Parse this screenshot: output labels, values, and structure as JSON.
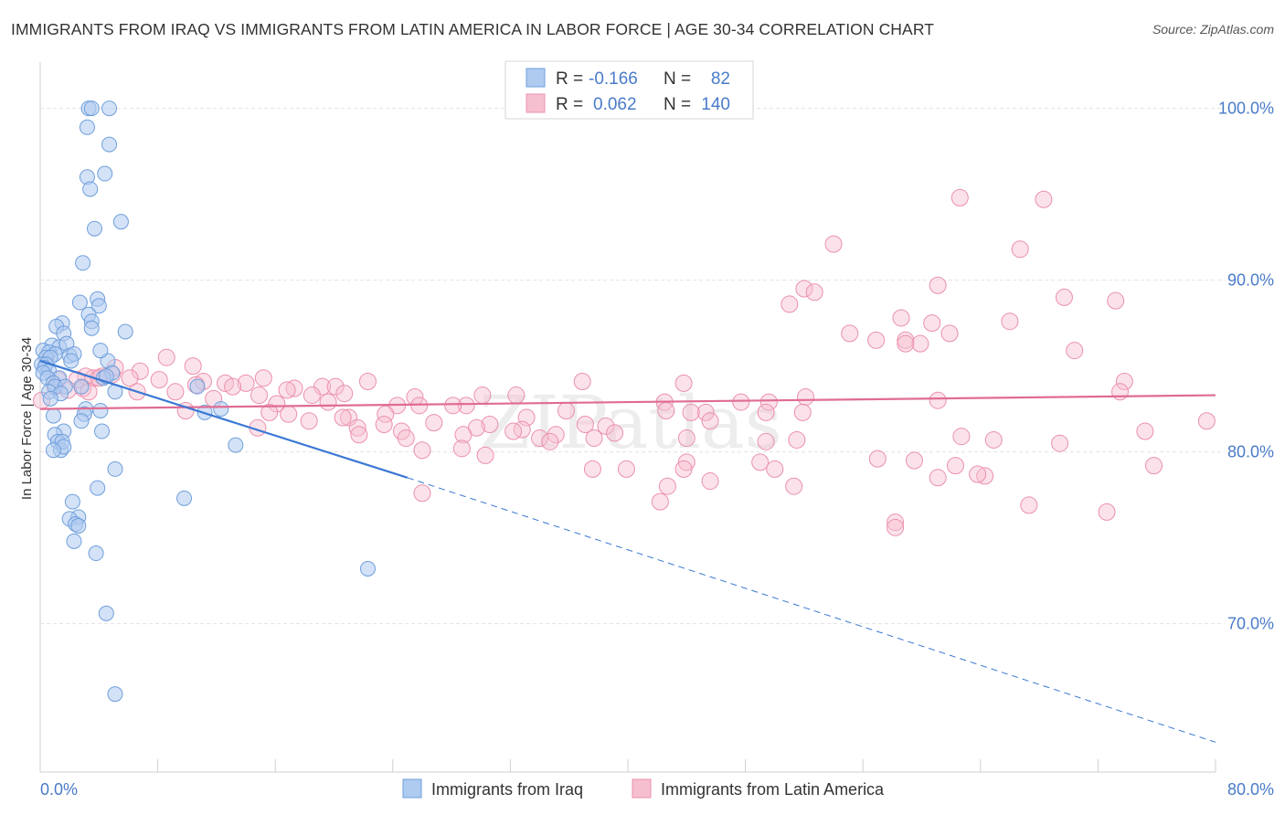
{
  "title": "IMMIGRANTS FROM IRAQ VS IMMIGRANTS FROM LATIN AMERICA IN LABOR FORCE | AGE 30-34 CORRELATION CHART",
  "source": "Source: ZipAtlas.com",
  "watermark": "ZIPatlas",
  "colors": {
    "iraq_fill": "#aecbf0",
    "iraq_stroke": "#6f9fdc",
    "iraq_line": "#3a78d4",
    "latam_fill": "#f6bfd0",
    "latam_stroke": "#eb90ac",
    "latam_line": "#e06c93",
    "grid": "#e3e3e3",
    "tick_label": "#4a7bc8"
  },
  "legend": {
    "iraq": {
      "r_label": "R =",
      "r_value": "-0.166",
      "n_label": "N =",
      "n_value": "82"
    },
    "latam": {
      "r_label": "R =",
      "r_value": "0.062",
      "n_label": "N =",
      "n_value": "140"
    }
  },
  "chart_data": {
    "type": "scatter",
    "title": "IMMIGRANTS FROM IRAQ VS IMMIGRANTS FROM LATIN AMERICA IN LABOR FORCE | AGE 30-34 CORRELATION CHART",
    "xlabel": "",
    "ylabel": "In Labor Force | Age 30-34",
    "xlim": [
      0,
      80
    ],
    "ylim": [
      62,
      102
    ],
    "x_tick_labels": [
      "0.0%",
      "80.0%"
    ],
    "y_ticks": [
      70,
      80,
      90,
      100
    ],
    "y_tick_labels": [
      "70.0%",
      "80.0%",
      "90.0%",
      "100.0%"
    ],
    "grid": true,
    "legend_position": "top-center",
    "series": [
      {
        "name": "Immigrants from Iraq",
        "trend": {
          "x": [
            0.0,
            25.0
          ],
          "y": [
            85.3,
            78.5
          ],
          "dashed_to": [
            80.0,
            63.1
          ]
        },
        "points": [
          [
            3.3,
            100
          ],
          [
            3.5,
            100
          ],
          [
            4.7,
            100
          ],
          [
            3.2,
            98.9
          ],
          [
            4.7,
            97.9
          ],
          [
            4.4,
            96.2
          ],
          [
            3.2,
            96
          ],
          [
            3.4,
            95.3
          ],
          [
            5.5,
            93.4
          ],
          [
            3.7,
            93
          ],
          [
            2.9,
            91
          ],
          [
            3.9,
            88.9
          ],
          [
            2.7,
            88.7
          ],
          [
            4.0,
            88.5
          ],
          [
            3.3,
            88.0
          ],
          [
            3.5,
            87.6
          ],
          [
            1.5,
            87.5
          ],
          [
            1.1,
            87.3
          ],
          [
            5.8,
            87.0
          ],
          [
            3.5,
            87.2
          ],
          [
            1.6,
            86.9
          ],
          [
            0.8,
            86.2
          ],
          [
            1.3,
            86.1
          ],
          [
            1.8,
            86.3
          ],
          [
            0.2,
            85.9
          ],
          [
            0.6,
            85.8
          ],
          [
            1.0,
            85.7
          ],
          [
            2.0,
            85.6
          ],
          [
            2.3,
            85.7
          ],
          [
            4.6,
            85.3
          ],
          [
            0.4,
            85.5
          ],
          [
            0.7,
            85.5
          ],
          [
            0.1,
            85.1
          ],
          [
            0.4,
            85.1
          ],
          [
            2.1,
            85.3
          ],
          [
            4.1,
            85.9
          ],
          [
            0.3,
            84.9
          ],
          [
            0.6,
            84.7
          ],
          [
            0.2,
            84.6
          ],
          [
            4.9,
            84.6
          ],
          [
            1.3,
            84.3
          ],
          [
            0.5,
            84.3
          ],
          [
            4.3,
            84.3
          ],
          [
            0.9,
            84.0
          ],
          [
            1.0,
            83.8
          ],
          [
            1.7,
            83.8
          ],
          [
            2.8,
            83.8
          ],
          [
            4.5,
            84.4
          ],
          [
            0.6,
            83.5
          ],
          [
            1.4,
            83.4
          ],
          [
            10.7,
            83.8
          ],
          [
            0.7,
            83.1
          ],
          [
            5.1,
            83.5
          ],
          [
            3.1,
            82.5
          ],
          [
            12.3,
            82.5
          ],
          [
            11.2,
            82.3
          ],
          [
            0.9,
            82.1
          ],
          [
            3.0,
            82.2
          ],
          [
            4.1,
            82.4
          ],
          [
            2.8,
            81.8
          ],
          [
            1.6,
            81.2
          ],
          [
            4.2,
            81.2
          ],
          [
            1.0,
            81.0
          ],
          [
            1.2,
            80.6
          ],
          [
            1.4,
            80.1
          ],
          [
            13.3,
            80.4
          ],
          [
            1.5,
            80.6
          ],
          [
            1.6,
            80.3
          ],
          [
            0.9,
            80.1
          ],
          [
            5.1,
            79.0
          ],
          [
            3.9,
            77.9
          ],
          [
            9.8,
            77.3
          ],
          [
            2.2,
            77.1
          ],
          [
            2.6,
            76.2
          ],
          [
            2.0,
            76.1
          ],
          [
            2.4,
            75.8
          ],
          [
            2.6,
            75.7
          ],
          [
            2.3,
            74.8
          ],
          [
            3.8,
            74.1
          ],
          [
            22.3,
            73.2
          ],
          [
            4.5,
            70.6
          ],
          [
            5.1,
            65.9
          ]
        ]
      },
      {
        "name": "Immigrants from Latin America",
        "trend": {
          "x": [
            0.0,
            80.0
          ],
          "y": [
            82.5,
            83.3
          ]
        },
        "points": [
          [
            62.6,
            94.8
          ],
          [
            68.3,
            94.7
          ],
          [
            54.0,
            92.1
          ],
          [
            66.7,
            91.8
          ],
          [
            61.1,
            89.7
          ],
          [
            52.0,
            89.5
          ],
          [
            52.7,
            89.3
          ],
          [
            51.0,
            88.6
          ],
          [
            69.7,
            89.0
          ],
          [
            73.2,
            88.8
          ],
          [
            58.6,
            87.8
          ],
          [
            66.0,
            87.6
          ],
          [
            60.7,
            87.5
          ],
          [
            55.1,
            86.9
          ],
          [
            61.9,
            86.9
          ],
          [
            56.9,
            86.5
          ],
          [
            58.9,
            86.5
          ],
          [
            59.9,
            86.3
          ],
          [
            58.9,
            86.3
          ],
          [
            70.4,
            85.9
          ],
          [
            8.6,
            85.5
          ],
          [
            10.4,
            85.0
          ],
          [
            5.1,
            84.9
          ],
          [
            6.8,
            84.7
          ],
          [
            4.9,
            84.5
          ],
          [
            4.2,
            84.4
          ],
          [
            3.6,
            84.3
          ],
          [
            3.1,
            84.4
          ],
          [
            15.2,
            84.3
          ],
          [
            22.3,
            84.1
          ],
          [
            36.9,
            84.1
          ],
          [
            43.8,
            84.0
          ],
          [
            73.8,
            84.1
          ],
          [
            1.2,
            84.2
          ],
          [
            2.5,
            84.2
          ],
          [
            6.1,
            84.3
          ],
          [
            8.1,
            84.2
          ],
          [
            11.1,
            84.1
          ],
          [
            12.6,
            84.0
          ],
          [
            14.0,
            84.0
          ],
          [
            10.6,
            83.9
          ],
          [
            1.0,
            83.8
          ],
          [
            2.9,
            83.7
          ],
          [
            4.0,
            84.3
          ],
          [
            13.1,
            83.8
          ],
          [
            17.3,
            83.7
          ],
          [
            19.2,
            83.8
          ],
          [
            16.8,
            83.6
          ],
          [
            20.1,
            83.8
          ],
          [
            9.2,
            83.5
          ],
          [
            6.6,
            83.5
          ],
          [
            3.3,
            83.5
          ],
          [
            1.9,
            83.6
          ],
          [
            0.1,
            83.0
          ],
          [
            14.9,
            83.3
          ],
          [
            20.7,
            83.4
          ],
          [
            18.5,
            83.3
          ],
          [
            30.1,
            83.3
          ],
          [
            32.4,
            83.3
          ],
          [
            52.1,
            83.2
          ],
          [
            61.1,
            83.0
          ],
          [
            73.5,
            83.5
          ],
          [
            25.5,
            83.2
          ],
          [
            19.6,
            82.9
          ],
          [
            16.1,
            82.8
          ],
          [
            42.5,
            82.9
          ],
          [
            49.6,
            82.9
          ],
          [
            47.7,
            82.9
          ],
          [
            11.8,
            83.1
          ],
          [
            15.6,
            82.3
          ],
          [
            24.3,
            82.7
          ],
          [
            29.0,
            82.7
          ],
          [
            45.3,
            82.3
          ],
          [
            44.3,
            82.3
          ],
          [
            9.9,
            82.4
          ],
          [
            16.9,
            82.2
          ],
          [
            23.5,
            82.2
          ],
          [
            25.8,
            82.7
          ],
          [
            28.1,
            82.7
          ],
          [
            35.8,
            82.4
          ],
          [
            42.6,
            82.4
          ],
          [
            45.6,
            81.8
          ],
          [
            49.4,
            82.3
          ],
          [
            51.9,
            82.3
          ],
          [
            21.0,
            82.0
          ],
          [
            20.6,
            82.0
          ],
          [
            33.1,
            82.0
          ],
          [
            37.1,
            81.6
          ],
          [
            26.8,
            81.7
          ],
          [
            23.4,
            81.6
          ],
          [
            30.6,
            81.6
          ],
          [
            18.3,
            81.8
          ],
          [
            79.4,
            81.8
          ],
          [
            21.6,
            81.4
          ],
          [
            14.8,
            81.4
          ],
          [
            24.6,
            81.2
          ],
          [
            29.7,
            81.4
          ],
          [
            32.8,
            81.3
          ],
          [
            32.2,
            81.2
          ],
          [
            38.5,
            81.5
          ],
          [
            39.1,
            81.1
          ],
          [
            35.1,
            81.0
          ],
          [
            21.7,
            81.0
          ],
          [
            28.8,
            81.0
          ],
          [
            34.0,
            80.8
          ],
          [
            24.9,
            80.8
          ],
          [
            28.7,
            80.2
          ],
          [
            26.0,
            80.1
          ],
          [
            34.7,
            80.6
          ],
          [
            37.7,
            80.8
          ],
          [
            44.0,
            80.8
          ],
          [
            51.5,
            80.7
          ],
          [
            49.4,
            80.6
          ],
          [
            75.2,
            81.2
          ],
          [
            64.9,
            80.7
          ],
          [
            62.7,
            80.9
          ],
          [
            69.4,
            80.5
          ],
          [
            30.3,
            79.8
          ],
          [
            49.0,
            79.4
          ],
          [
            57.0,
            79.6
          ],
          [
            59.5,
            79.5
          ],
          [
            62.3,
            79.2
          ],
          [
            61.1,
            78.5
          ],
          [
            75.8,
            79.2
          ],
          [
            44.0,
            79.4
          ],
          [
            50.0,
            79.0
          ],
          [
            43.8,
            79.0
          ],
          [
            37.6,
            79.0
          ],
          [
            39.9,
            79.0
          ],
          [
            51.3,
            78.0
          ],
          [
            64.3,
            78.6
          ],
          [
            63.8,
            78.7
          ],
          [
            42.7,
            78.0
          ],
          [
            45.6,
            78.3
          ],
          [
            26.0,
            77.6
          ],
          [
            42.2,
            77.1
          ],
          [
            67.3,
            76.9
          ],
          [
            72.6,
            76.5
          ],
          [
            58.2,
            75.9
          ],
          [
            58.2,
            75.6
          ]
        ]
      }
    ]
  },
  "bottom_legend": {
    "iraq_label": "Immigrants from Iraq",
    "latam_label": "Immigrants from Latin America"
  }
}
